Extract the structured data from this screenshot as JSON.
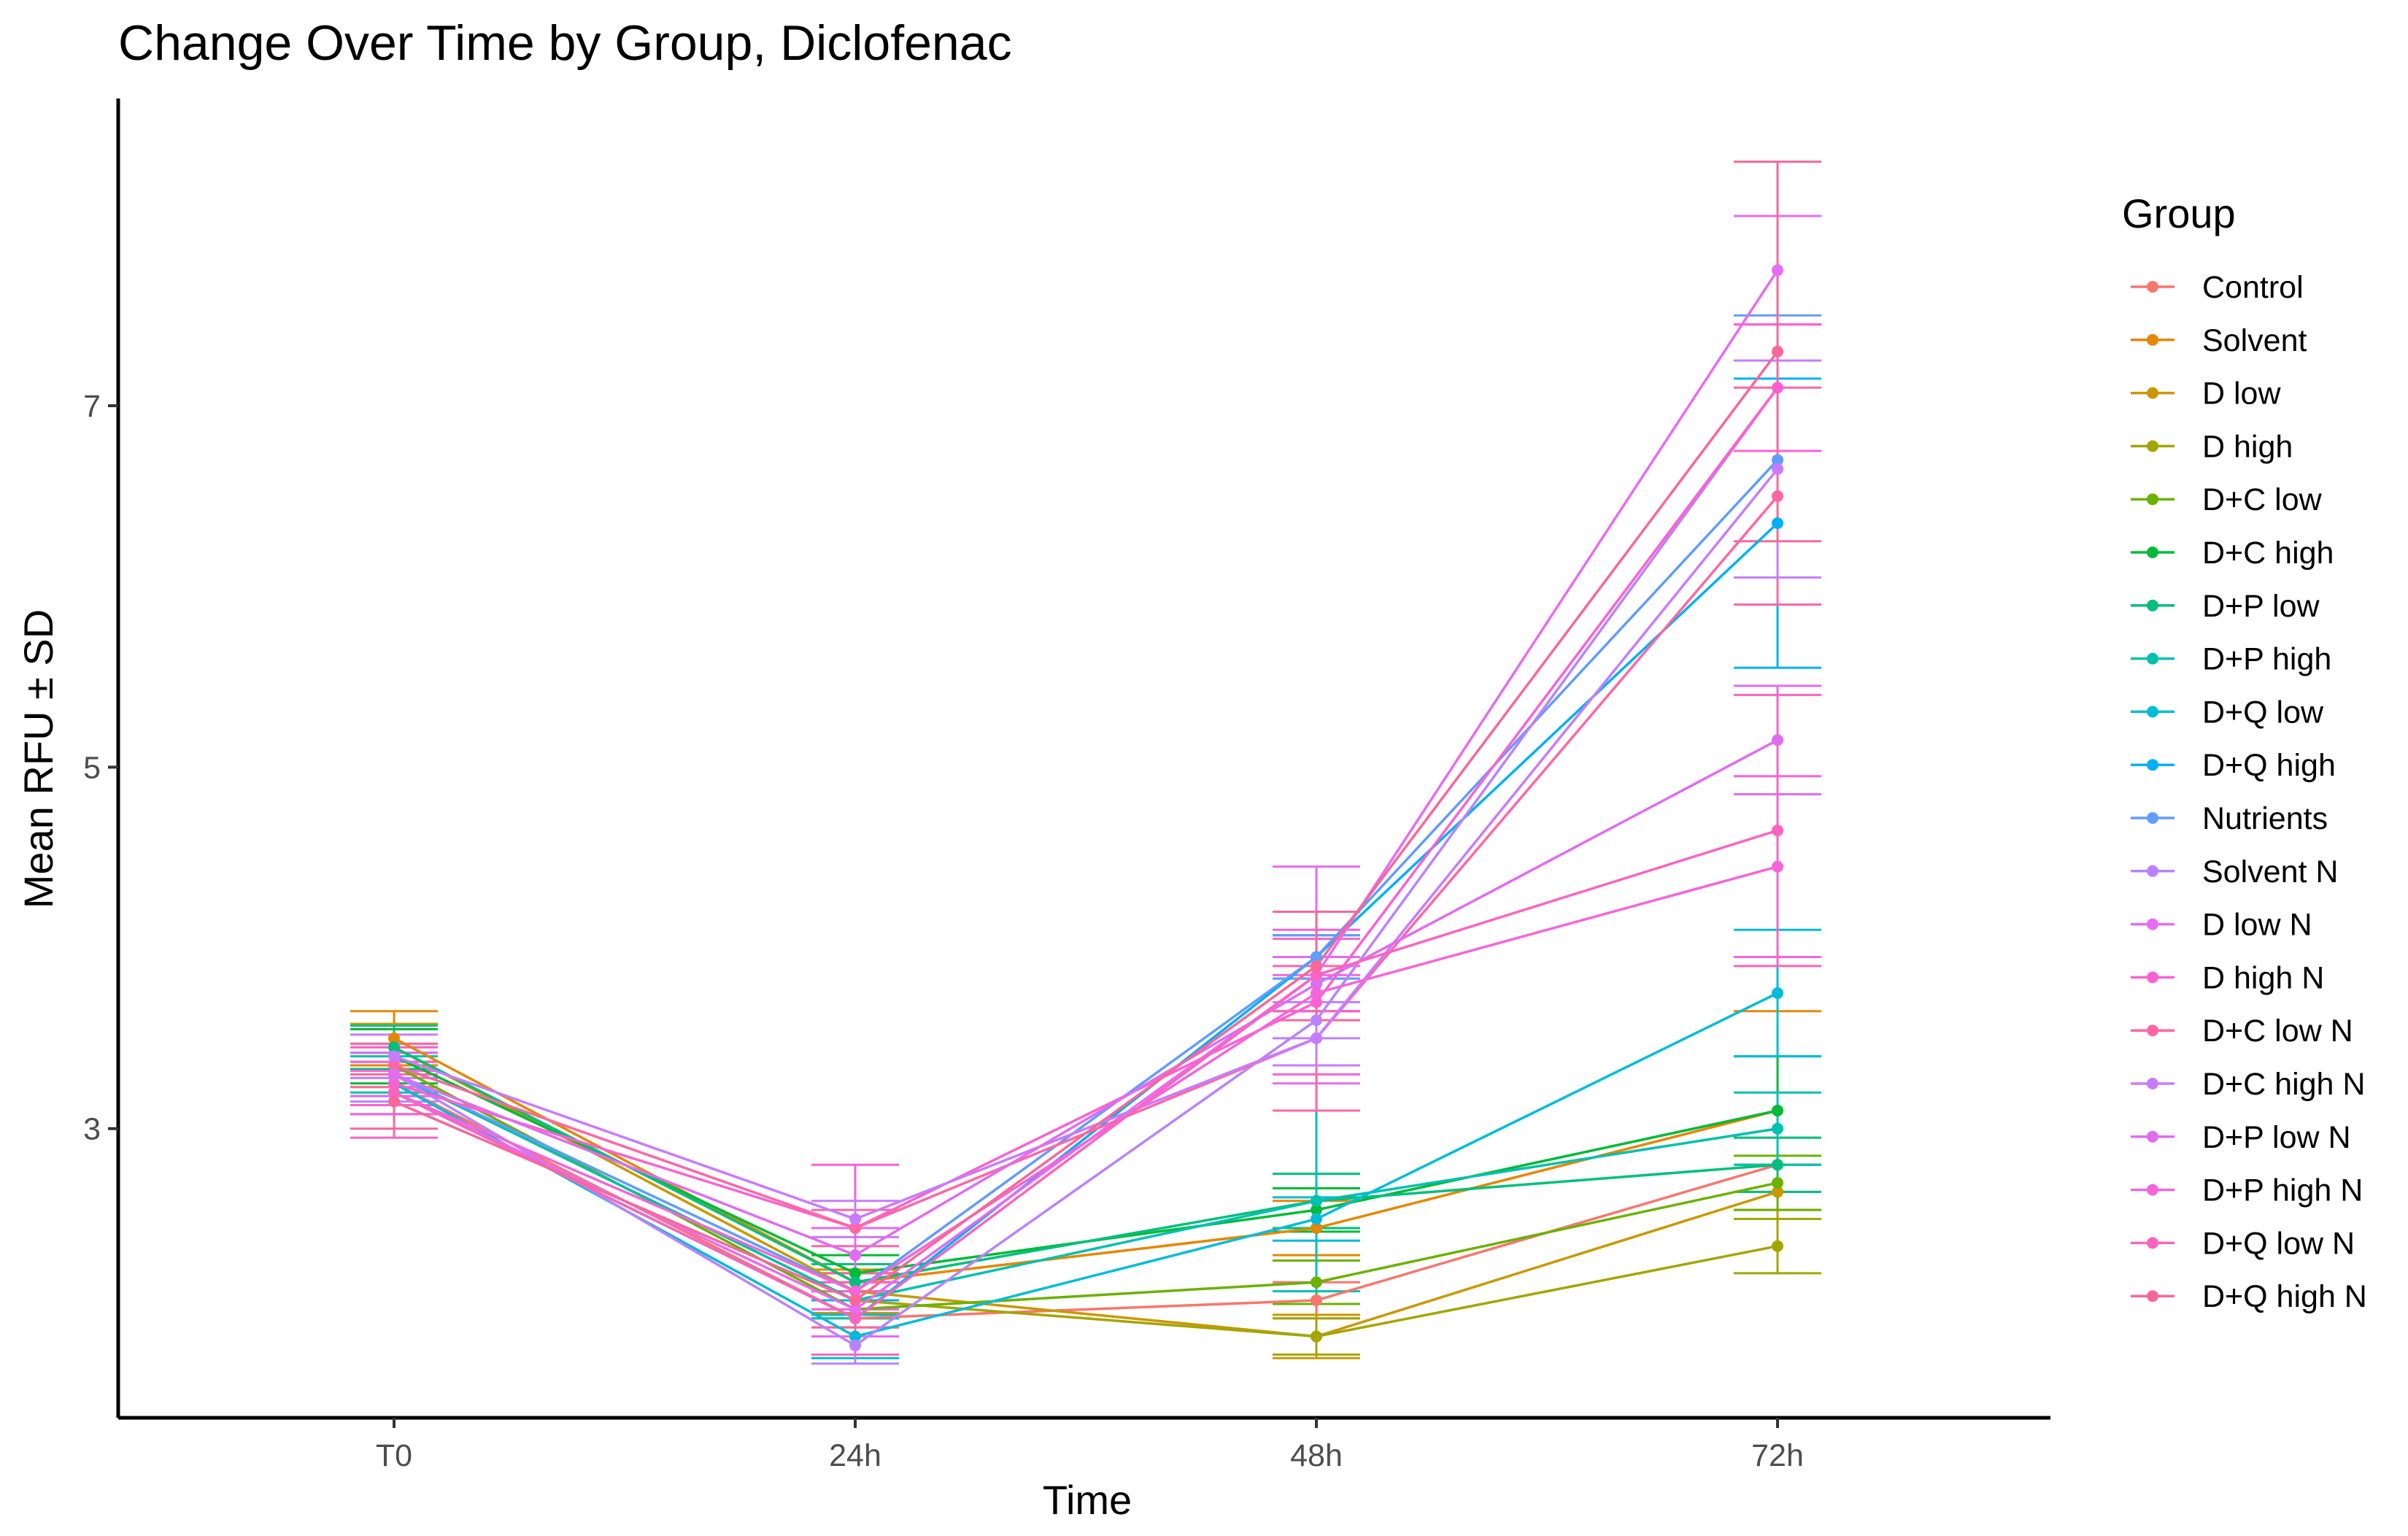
{
  "chart_data": {
    "type": "line",
    "title": "Change Over Time by Group, Diclofenac",
    "xlabel": "Time",
    "ylabel": "Mean RFU ± SD",
    "categories": [
      "T0",
      "24h",
      "48h",
      "72h"
    ],
    "ylim": [
      1.4,
      8.7
    ],
    "yticks": [
      3,
      5,
      7
    ],
    "grid": false,
    "legend": {
      "title": "Group",
      "position": "right"
    },
    "series": [
      {
        "name": "Control",
        "color": "#F8766D",
        "values": [
          3.25,
          1.95,
          2.05,
          2.8
        ],
        "sd": [
          0.12,
          0.1,
          0.1,
          0.15
        ]
      },
      {
        "name": "Solvent",
        "color": "#E58700",
        "values": [
          3.5,
          2.15,
          2.45,
          3.1
        ],
        "sd": [
          0.15,
          0.1,
          0.15,
          0.55
        ]
      },
      {
        "name": "D low",
        "color": "#C99800",
        "values": [
          3.45,
          2.1,
          1.85,
          2.65
        ],
        "sd": [
          0.13,
          0.12,
          0.12,
          0.15
        ]
      },
      {
        "name": "D high",
        "color": "#A3A500",
        "values": [
          3.3,
          2.05,
          1.85,
          2.35
        ],
        "sd": [
          0.12,
          0.1,
          0.1,
          0.15
        ]
      },
      {
        "name": "D+C low",
        "color": "#6BB100",
        "values": [
          3.35,
          2.0,
          2.15,
          2.7
        ],
        "sd": [
          0.12,
          0.1,
          0.12,
          0.15
        ]
      },
      {
        "name": "D+C high",
        "color": "#00BA38",
        "values": [
          3.4,
          2.2,
          2.55,
          3.1
        ],
        "sd": [
          0.15,
          0.1,
          0.12,
          0.3
        ]
      },
      {
        "name": "D+P low",
        "color": "#00BF7D",
        "values": [
          3.45,
          2.15,
          2.6,
          2.8
        ],
        "sd": [
          0.12,
          0.1,
          0.15,
          0.15
        ]
      },
      {
        "name": "D+P high",
        "color": "#00C0AF",
        "values": [
          3.3,
          2.05,
          2.6,
          3.0
        ],
        "sd": [
          0.1,
          0.1,
          0.5,
          0.2
        ]
      },
      {
        "name": "D+Q low",
        "color": "#00BCD8",
        "values": [
          3.25,
          1.85,
          2.5,
          3.75
        ],
        "sd": [
          0.12,
          0.12,
          0.12,
          0.35
        ]
      },
      {
        "name": "D+Q high",
        "color": "#00B0F6",
        "values": [
          3.2,
          1.95,
          3.95,
          6.35
        ],
        "sd": [
          0.12,
          0.1,
          0.12,
          0.8
        ]
      },
      {
        "name": "Nutrients",
        "color": "#619CFF",
        "values": [
          3.3,
          2.1,
          3.95,
          6.7
        ],
        "sd": [
          0.12,
          0.1,
          0.12,
          0.8
        ]
      },
      {
        "name": "Solvent N",
        "color": "#B983FF",
        "values": [
          3.3,
          1.8,
          3.6,
          7.1
        ],
        "sd": [
          0.15,
          0.1,
          0.1,
          0.35
        ]
      },
      {
        "name": "D low N",
        "color": "#E76BF3",
        "values": [
          3.2,
          2.0,
          3.85,
          7.75
        ],
        "sd": [
          0.12,
          0.15,
          0.6,
          0.3
        ]
      },
      {
        "name": "D high N",
        "color": "#FD61D1",
        "values": [
          3.25,
          2.45,
          3.7,
          7.1
        ],
        "sd": [
          0.12,
          0.35,
          0.4,
          0.35
        ]
      },
      {
        "name": "D+C low N",
        "color": "#FF67A4",
        "values": [
          3.35,
          2.45,
          3.5,
          6.5
        ],
        "sd": [
          0.12,
          0.1,
          0.4,
          0.6
        ]
      },
      {
        "name": "D+C high N",
        "color": "#C77CFF",
        "values": [
          3.4,
          2.5,
          3.5,
          6.65
        ],
        "sd": [
          0.12,
          0.1,
          0.15,
          0.6
        ]
      },
      {
        "name": "D+P low N",
        "color": "#E06CF0",
        "values": [
          3.3,
          2.3,
          3.8,
          5.15
        ],
        "sd": [
          0.12,
          0.15,
          0.15,
          0.3
        ]
      },
      {
        "name": "D+P high N",
        "color": "#F565D9",
        "values": [
          3.2,
          2.1,
          3.75,
          4.45
        ],
        "sd": [
          0.12,
          0.1,
          0.1,
          0.5
        ]
      },
      {
        "name": "D+Q low N",
        "color": "#FA64C0",
        "values": [
          3.2,
          1.95,
          3.85,
          4.65
        ],
        "sd": [
          0.25,
          0.2,
          0.2,
          0.75
        ]
      },
      {
        "name": "D+Q high N",
        "color": "#F8679A",
        "values": [
          3.15,
          2.05,
          3.9,
          7.3
        ],
        "sd": [
          0.15,
          0.15,
          0.3,
          1.05
        ]
      }
    ]
  }
}
